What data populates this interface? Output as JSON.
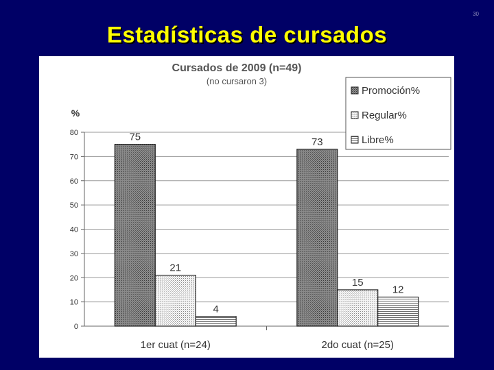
{
  "slide": {
    "title": "Estadísticas de cursados",
    "number": "30"
  },
  "chart_data": {
    "type": "bar",
    "title": "Cursados de 2009 (n=49)",
    "subtitle": "(no cursaron 3)",
    "ylabel": "%",
    "xlabel": "",
    "ylim": [
      0,
      80
    ],
    "yticks": [
      0,
      10,
      20,
      30,
      40,
      50,
      60,
      70,
      80
    ],
    "grid": true,
    "legend_position": "top-right",
    "categories": [
      "1er cuat (n=24)",
      "2do cuat (n=25)"
    ],
    "series": [
      {
        "name": "Promoción%",
        "values": [
          75,
          73
        ],
        "pattern": "dark"
      },
      {
        "name": "Regular%",
        "values": [
          21,
          15
        ],
        "pattern": "light"
      },
      {
        "name": "Libre%",
        "values": [
          4,
          12
        ],
        "pattern": "hstripe"
      }
    ]
  },
  "colors": {
    "background": "#000066",
    "title": "#ffff00"
  }
}
